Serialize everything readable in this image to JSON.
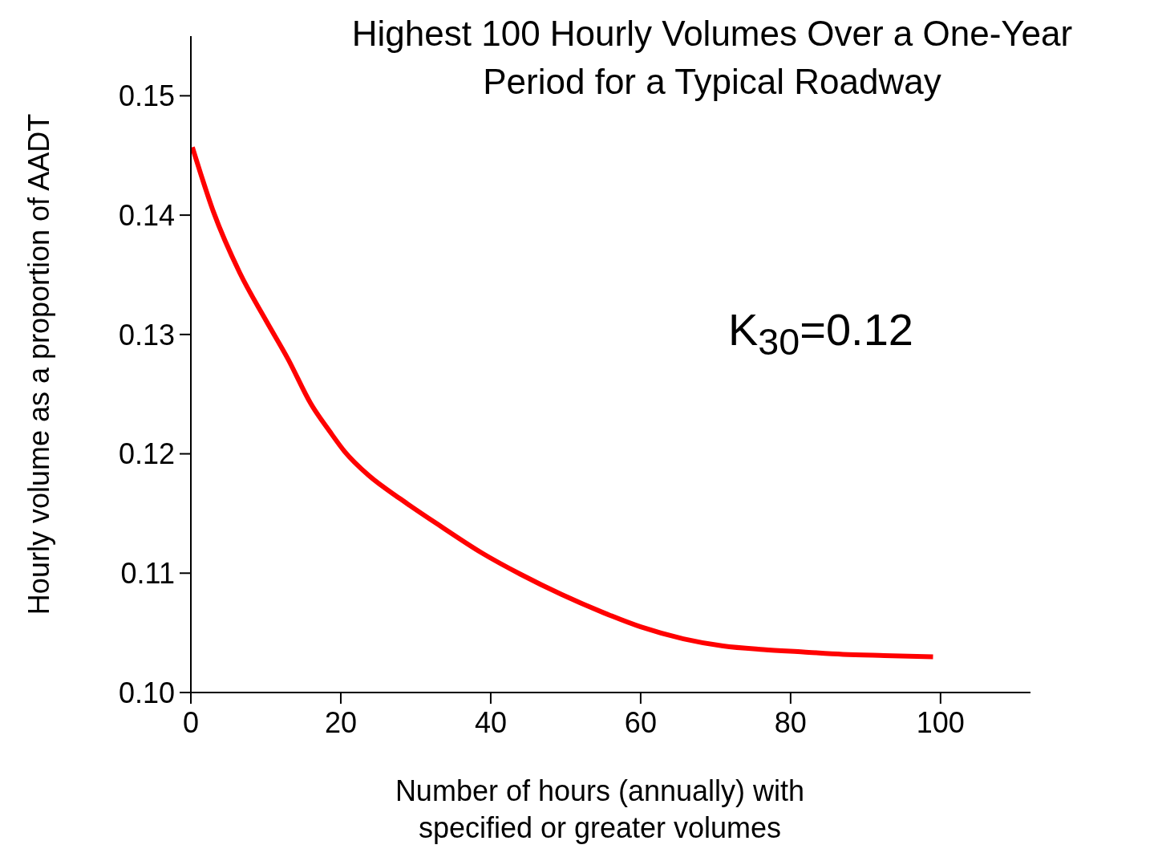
{
  "chart_data": {
    "type": "line",
    "title": "Highest 100 Hourly Volumes Over a One-Year Period for a Typical Roadway",
    "xlabel": "Number of hours (annually) with specified or greater volumes",
    "ylabel": "Hourly volume as a proportion of AADT",
    "x": [
      0.2,
      3,
      6.5,
      10,
      13,
      16,
      18.5,
      20.5,
      23.7,
      28,
      33.4,
      38.8,
      44,
      49.5,
      55,
      60,
      65.7,
      71,
      76.4,
      81.7,
      87,
      92.5,
      99
    ],
    "series": [
      {
        "color": "#ff0000",
        "values": [
          0.1457,
          0.1403,
          0.1352,
          0.1312,
          0.1279,
          0.1242,
          0.1219,
          0.1202,
          0.1182,
          0.1162,
          0.1139,
          0.1117,
          0.1099,
          0.1082,
          0.1067,
          0.1055,
          0.1045,
          0.1039,
          0.1036,
          0.1034,
          0.1032,
          0.1031,
          0.103
        ]
      }
    ],
    "xlim": [
      0,
      112
    ],
    "xticks": [
      0,
      20,
      40,
      60,
      80,
      100
    ],
    "ylim": [
      0.1,
      0.155
    ],
    "yticks": [
      {
        "value": 0.1,
        "label": "0.10"
      },
      {
        "value": 0.11,
        "label": "0.11"
      },
      {
        "value": 0.12,
        "label": "0.12"
      },
      {
        "value": 0.13,
        "label": "0.13"
      },
      {
        "value": 0.14,
        "label": "0.14"
      },
      {
        "value": 0.15,
        "label": "0.15"
      }
    ],
    "annotations": [
      "K$_{30}$=0.12"
    ],
    "grid": false,
    "marker": "none",
    "line_style": "solid"
  }
}
